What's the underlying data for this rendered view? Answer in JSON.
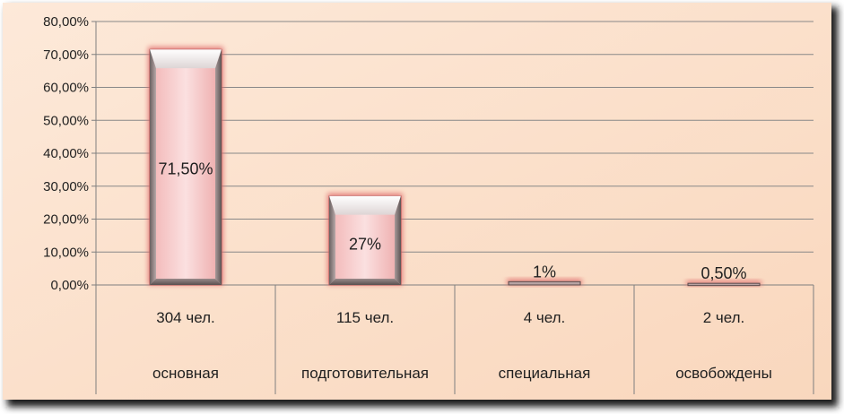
{
  "chart_data": {
    "type": "bar",
    "categories": [
      [
        "304 чел.",
        "основная"
      ],
      [
        "115 чел.",
        "подготовительная"
      ],
      [
        "4 чел.",
        "специальная"
      ],
      [
        "2 чел.",
        "освобождены"
      ]
    ],
    "values": [
      71.5,
      27,
      1,
      0.5
    ],
    "data_labels": [
      "71,50%",
      "27%",
      "1%",
      "0,50%"
    ],
    "y_ticks": [
      "0,00%",
      "10,00%",
      "20,00%",
      "30,00%",
      "40,00%",
      "50,00%",
      "60,00%",
      "70,00%",
      "80,00%"
    ],
    "ylim": [
      0,
      80
    ],
    "grid": true,
    "legend": "none",
    "colors": {
      "background": "#fbe3cf",
      "bar_fill": "#f6c8c8",
      "bar_edge": "#b05050",
      "bar_glow": "#e07070",
      "grid": "#888888",
      "axis": "#7f7f7f",
      "text": "#1f1f1f",
      "frame_shadow": "#222222"
    }
  }
}
